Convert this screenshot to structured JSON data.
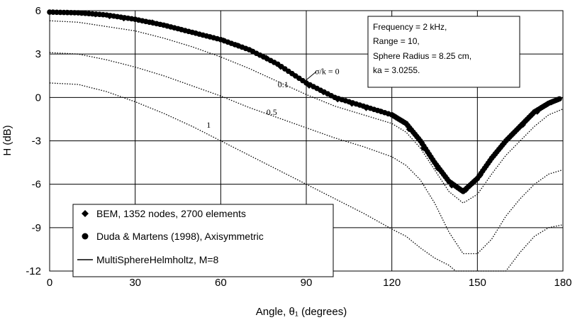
{
  "chart_data": {
    "type": "line",
    "xlabel": "Angle, θ₁ (degrees)",
    "ylabel": "H (dB)",
    "xlim": [
      0,
      180
    ],
    "ylim": [
      -12,
      6
    ],
    "xticks": [
      0,
      30,
      60,
      90,
      120,
      150,
      180
    ],
    "yticks": [
      6,
      3,
      0,
      -3,
      -6,
      -9,
      -12
    ],
    "grid": true,
    "legend_position": "bottom-left",
    "legend": [
      {
        "label": "BEM, 1352 nodes, 2700 elements",
        "marker": "diamond"
      },
      {
        "label": "Duda & Martens (1998), Axisymmetric",
        "marker": "circle"
      },
      {
        "label": "MultiSphereHelmholtz, M=8",
        "marker": "line"
      }
    ],
    "annotation": [
      "Frequency = 2 kHz,",
      "Range = 10,",
      "Sphere Radius = 8.25 cm,",
      "ka = 3.0255."
    ],
    "curve_labels": [
      {
        "text": "σ/k = 0",
        "x": 93,
        "y": 1.6
      },
      {
        "text": "0.1",
        "x": 80,
        "y": 0.7
      },
      {
        "text": "0.5",
        "x": 76,
        "y": -1.2
      },
      {
        "text": "1",
        "x": 55,
        "y": -2.1
      }
    ],
    "series": [
      {
        "name": "σ/k = 0",
        "style": "solid",
        "x": [
          0,
          10,
          20,
          30,
          40,
          50,
          60,
          70,
          80,
          90,
          100,
          110,
          120,
          125,
          130,
          135,
          140,
          145,
          150,
          155,
          160,
          165,
          170,
          175,
          180
        ],
        "y": [
          5.9,
          5.85,
          5.7,
          5.4,
          5.0,
          4.5,
          4.0,
          3.3,
          2.3,
          1.0,
          0.0,
          -0.6,
          -1.2,
          -1.8,
          -3.0,
          -4.5,
          -5.8,
          -6.5,
          -5.6,
          -4.2,
          -3.0,
          -2.0,
          -1.0,
          -0.4,
          0.0
        ]
      },
      {
        "name": "0.1",
        "style": "dotted",
        "x": [
          0,
          10,
          20,
          30,
          40,
          50,
          60,
          70,
          80,
          90,
          100,
          110,
          120,
          125,
          130,
          135,
          140,
          145,
          150,
          155,
          160,
          165,
          170,
          175,
          180
        ],
        "y": [
          5.3,
          5.2,
          4.9,
          4.6,
          4.1,
          3.5,
          2.8,
          2.0,
          1.1,
          0.2,
          -0.6,
          -1.2,
          -1.8,
          -2.4,
          -3.5,
          -5.0,
          -6.5,
          -7.3,
          -6.7,
          -5.3,
          -4.0,
          -3.0,
          -2.0,
          -1.2,
          -0.8
        ]
      },
      {
        "name": "0.5",
        "style": "dotted",
        "x": [
          0,
          10,
          20,
          30,
          40,
          50,
          60,
          70,
          80,
          90,
          100,
          110,
          120,
          125,
          130,
          135,
          140,
          145,
          150,
          155,
          160,
          165,
          170,
          175,
          180
        ],
        "y": [
          3.1,
          3.0,
          2.6,
          2.1,
          1.5,
          0.8,
          0.1,
          -0.7,
          -1.4,
          -2.1,
          -2.8,
          -3.4,
          -4.1,
          -4.7,
          -5.7,
          -7.3,
          -9.3,
          -10.8,
          -10.8,
          -9.8,
          -8.2,
          -7.0,
          -6.0,
          -5.3,
          -5.0
        ]
      },
      {
        "name": "1",
        "style": "dotted",
        "x": [
          0,
          10,
          20,
          30,
          40,
          50,
          60,
          70,
          80,
          90,
          100,
          110,
          120,
          125,
          130,
          135,
          140,
          142.4,
          160,
          165,
          170,
          175,
          180
        ],
        "y": [
          1.0,
          0.9,
          0.4,
          -0.3,
          -1.1,
          -2.0,
          -3.0,
          -4.0,
          -5.0,
          -6.0,
          -7.0,
          -8.0,
          -9.1,
          -9.6,
          -10.4,
          -11.1,
          -11.6,
          -12.0,
          -12.0,
          -10.7,
          -9.6,
          -9.0,
          -8.8
        ]
      },
      {
        "name": "BEM, 1352 nodes, 2700 elements",
        "style": "markers",
        "x": [
          1,
          6,
          11,
          16,
          21,
          26,
          31,
          36,
          41,
          46,
          51,
          56,
          61,
          66,
          71,
          76,
          81,
          86,
          91,
          96,
          101,
          106,
          111,
          116,
          121,
          126,
          131,
          136,
          141,
          146,
          151,
          156,
          161,
          166,
          171,
          176
        ],
        "y": [
          5.9,
          5.88,
          5.83,
          5.73,
          5.6,
          5.45,
          5.35,
          5.2,
          4.95,
          4.7,
          4.45,
          4.2,
          3.95,
          3.6,
          3.2,
          2.75,
          2.1,
          1.5,
          0.8,
          0.35,
          -0.15,
          -0.45,
          -0.75,
          -0.95,
          -1.3,
          -2.2,
          -3.5,
          -4.9,
          -6.1,
          -6.4,
          -5.4,
          -4.0,
          -2.8,
          -1.9,
          -1.0,
          -0.35
        ]
      }
    ]
  }
}
